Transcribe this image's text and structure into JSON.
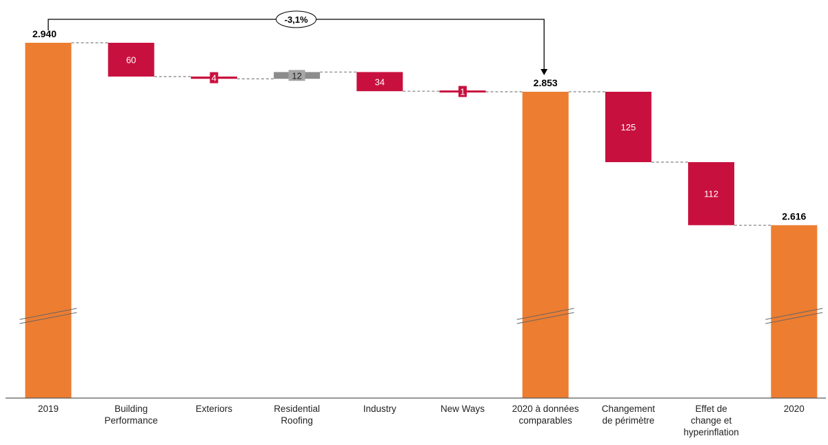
{
  "chart_data": {
    "type": "bar",
    "subtype": "waterfall",
    "title": "",
    "xlabel": "",
    "ylabel": "",
    "axis_break": true,
    "grid": false,
    "legend": "none",
    "categories": [
      [
        "2019"
      ],
      [
        "Building",
        "Performance"
      ],
      [
        "Exteriors"
      ],
      [
        "Residential",
        "Roofing"
      ],
      [
        "Industry"
      ],
      [
        "New Ways"
      ],
      [
        "2020 à données",
        "comparables"
      ],
      [
        "Changement",
        "de périmètre"
      ],
      [
        "Effet de",
        "change et",
        "hyperinflation"
      ],
      [
        "2020"
      ]
    ],
    "bars": [
      {
        "kind": "total",
        "value": 2940,
        "label": "2.940",
        "color": "#ED7D31"
      },
      {
        "kind": "delta",
        "value": -60,
        "label": "60",
        "color": "#C8103E"
      },
      {
        "kind": "delta",
        "value": -4,
        "label": "4",
        "color": "#C8103E"
      },
      {
        "kind": "delta",
        "value": 12,
        "label": "12",
        "color": "#8C8C8C"
      },
      {
        "kind": "delta",
        "value": -34,
        "label": "34",
        "color": "#C8103E"
      },
      {
        "kind": "delta",
        "value": -1,
        "label": "1",
        "color": "#C8103E"
      },
      {
        "kind": "total",
        "value": 2853,
        "label": "2.853",
        "color": "#ED7D31"
      },
      {
        "kind": "delta",
        "value": -125,
        "label": "125",
        "color": "#C8103E"
      },
      {
        "kind": "delta",
        "value": -112,
        "label": "112",
        "color": "#C8103E"
      },
      {
        "kind": "total",
        "value": 2616,
        "label": "2.616",
        "color": "#ED7D31"
      }
    ],
    "annotation": {
      "text": "-3,1%",
      "from_category": 0,
      "to_category": 6
    }
  }
}
